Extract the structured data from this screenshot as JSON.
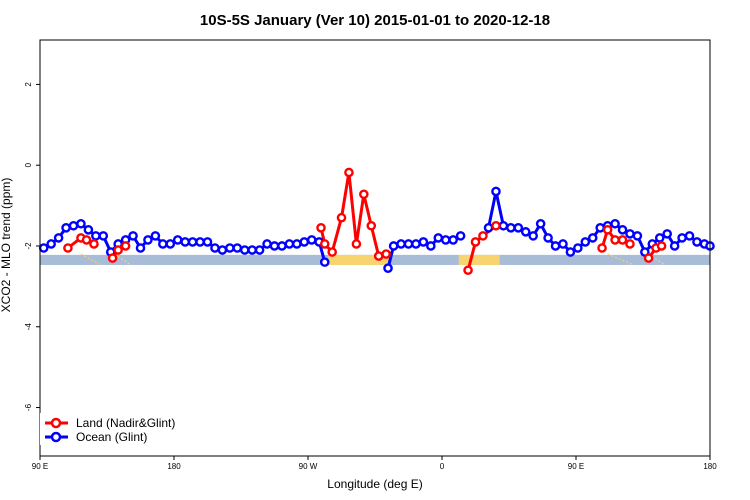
{
  "chart_data": {
    "type": "line",
    "title": "10S-5S January (Ver 10)   2015-01-01 to 2020-12-18",
    "xlabel": "Longitude (deg E)",
    "ylabel": "XCO2 - MLO trend (ppm)",
    "xlim": [
      0,
      360
    ],
    "ylim": [
      -7.2,
      3.1
    ],
    "x_ticks": [
      {
        "value": 0,
        "label": "90 E"
      },
      {
        "value": 72,
        "label": "180"
      },
      {
        "value": 144,
        "label": "90 W"
      },
      {
        "value": 216,
        "label": "0"
      },
      {
        "value": 288,
        "label": "90 E"
      },
      {
        "value": 360,
        "label": "180"
      }
    ],
    "y_ticks": [
      {
        "value": 2,
        "label": "2"
      },
      {
        "value": 0,
        "label": "0"
      },
      {
        "value": -2,
        "label": "-2"
      },
      {
        "value": -4,
        "label": "-4"
      },
      {
        "value": -6,
        "label": "-6"
      }
    ],
    "background_band": {
      "y_range": [
        -2.47,
        -2.22
      ],
      "ocean_color": "#a8bcd8",
      "land_color": "#f7d470",
      "land_x_ranges": [
        [
          155,
          188
        ],
        [
          225,
          247
        ]
      ]
    },
    "series": [
      {
        "name": "Land (Nadir&Glint)",
        "color": "#ff0000",
        "segments": [
          {
            "x": [
              15,
              22,
              25,
              29
            ],
            "y": [
              -2.05,
              -1.8,
              -1.85,
              -1.95
            ]
          },
          {
            "x": [
              39,
              42,
              46
            ],
            "y": [
              -2.3,
              -2.1,
              -2.0
            ]
          },
          {
            "x": [
              151,
              153,
              157,
              162,
              166,
              170,
              174,
              178,
              182,
              186
            ],
            "y": [
              -1.55,
              -1.95,
              -2.15,
              -1.3,
              -0.18,
              -1.95,
              -0.72,
              -1.5,
              -2.25,
              -2.2
            ]
          },
          {
            "x": [
              230,
              234,
              238,
              245
            ],
            "y": [
              -2.6,
              -1.9,
              -1.75,
              -1.5
            ]
          },
          {
            "x": [
              302,
              305,
              309,
              313,
              317
            ],
            "y": [
              -2.05,
              -1.6,
              -1.85,
              -1.85,
              -1.95
            ]
          },
          {
            "x": [
              327,
              331,
              334
            ],
            "y": [
              -2.3,
              -2.05,
              -2.0
            ]
          }
        ]
      },
      {
        "name": "Ocean (Glint)",
        "color": "#0000ff",
        "segments": [
          {
            "x": [
              2,
              6,
              10,
              14,
              18,
              22,
              26,
              30,
              34,
              38,
              42,
              46,
              50,
              54,
              58,
              62,
              66,
              70,
              74,
              78,
              82,
              86,
              90,
              94,
              98,
              102,
              106,
              110,
              114,
              118,
              122,
              126,
              130,
              134,
              138,
              142,
              146,
              150,
              153
            ],
            "y": [
              -2.05,
              -1.95,
              -1.8,
              -1.55,
              -1.5,
              -1.45,
              -1.6,
              -1.75,
              -1.75,
              -2.15,
              -1.95,
              -1.85,
              -1.75,
              -2.05,
              -1.85,
              -1.75,
              -1.95,
              -1.95,
              -1.85,
              -1.9,
              -1.9,
              -1.9,
              -1.9,
              -2.05,
              -2.1,
              -2.05,
              -2.05,
              -2.1,
              -2.1,
              -2.1,
              -1.95,
              -2.0,
              -2.0,
              -1.95,
              -1.95,
              -1.9,
              -1.85,
              -1.9,
              -2.4
            ]
          },
          {
            "x": [
              187,
              190,
              194,
              198,
              202,
              206,
              210,
              214,
              218,
              222,
              226
            ],
            "y": [
              -2.55,
              -2.0,
              -1.95,
              -1.95,
              -1.95,
              -1.9,
              -2.0,
              -1.8,
              -1.85,
              -1.85,
              -1.75
            ]
          },
          {
            "x": [
              241,
              245,
              249,
              253,
              257,
              261,
              265,
              269,
              273,
              277,
              281,
              285,
              289,
              293,
              297,
              301,
              305,
              309,
              313,
              317,
              321,
              325,
              329,
              333,
              337,
              341,
              345,
              349,
              353,
              357,
              360
            ],
            "y": [
              -1.55,
              -0.65,
              -1.5,
              -1.55,
              -1.55,
              -1.65,
              -1.75,
              -1.45,
              -1.8,
              -2.0,
              -1.95,
              -2.15,
              -2.05,
              -1.9,
              -1.8,
              -1.55,
              -1.5,
              -1.45,
              -1.6,
              -1.7,
              -1.75,
              -2.15,
              -1.95,
              -1.8,
              -1.7,
              -2.0,
              -1.8,
              -1.75,
              -1.9,
              -1.95,
              -2.0
            ]
          }
        ]
      }
    ],
    "legend": {
      "position": "bottom-left"
    },
    "grid": false
  }
}
